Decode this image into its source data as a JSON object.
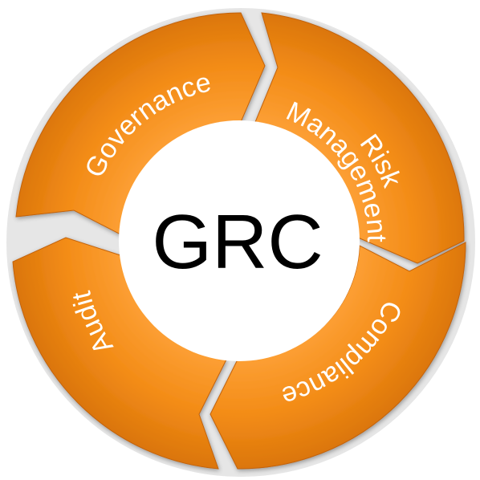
{
  "center": {
    "label": "GRC"
  },
  "segments": [
    {
      "id": "governance",
      "label": "Governance"
    },
    {
      "id": "risk-management",
      "label_lines": [
        "Risk",
        "Management"
      ]
    },
    {
      "id": "compliance",
      "label": "Compliance"
    },
    {
      "id": "audit",
      "label": "Audit"
    }
  ],
  "colors": {
    "segment_light": "#ffa43c",
    "segment_mid": "#f38c17",
    "segment_dark": "#d9740a",
    "segment_edge": "#c26208",
    "gap": "#e6e6e6",
    "center_fill": "#ffffff",
    "label_text": "#ffffff",
    "center_text": "#000000"
  }
}
